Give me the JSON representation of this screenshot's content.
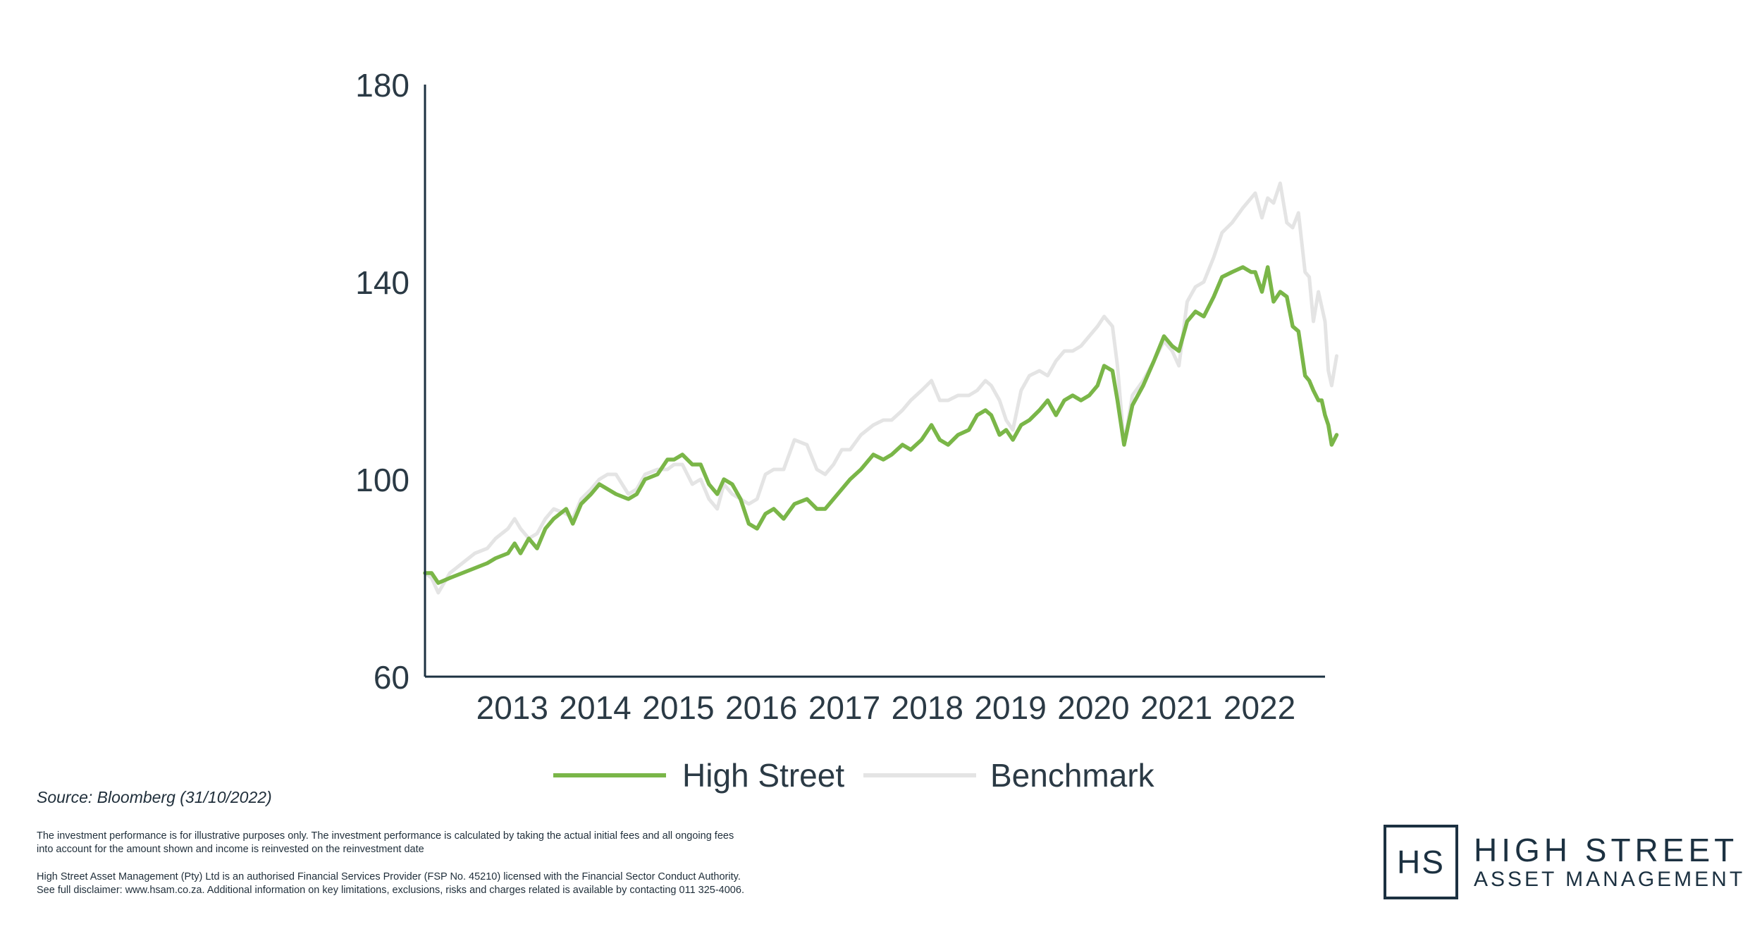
{
  "chart_data": {
    "type": "line",
    "title": "",
    "xlabel": "",
    "ylabel": "",
    "ylim": [
      60,
      180
    ],
    "yticks": [
      60,
      100,
      140,
      180
    ],
    "xlim": [
      2012.0,
      2022.84
    ],
    "xticks": [
      2013,
      2014,
      2015,
      2016,
      2017,
      2018,
      2019,
      2020,
      2021,
      2022
    ],
    "grid": false,
    "legend_position": "bottom",
    "series": [
      {
        "name": "High Street",
        "color": "#7ab648",
        "points": [
          [
            2012.0,
            81
          ],
          [
            2012.08,
            81
          ],
          [
            2012.16,
            79
          ],
          [
            2012.3,
            80
          ],
          [
            2012.45,
            81
          ],
          [
            2012.6,
            82
          ],
          [
            2012.75,
            83
          ],
          [
            2012.85,
            84
          ],
          [
            2013.0,
            85
          ],
          [
            2013.08,
            87
          ],
          [
            2013.15,
            85
          ],
          [
            2013.25,
            88
          ],
          [
            2013.35,
            86
          ],
          [
            2013.45,
            90
          ],
          [
            2013.55,
            92
          ],
          [
            2013.7,
            94
          ],
          [
            2013.78,
            91
          ],
          [
            2013.88,
            95
          ],
          [
            2014.0,
            97
          ],
          [
            2014.1,
            99
          ],
          [
            2014.2,
            98
          ],
          [
            2014.3,
            97
          ],
          [
            2014.45,
            96
          ],
          [
            2014.55,
            97
          ],
          [
            2014.65,
            100
          ],
          [
            2014.8,
            101
          ],
          [
            2014.92,
            104
          ],
          [
            2015.0,
            104
          ],
          [
            2015.1,
            105
          ],
          [
            2015.22,
            103
          ],
          [
            2015.32,
            103
          ],
          [
            2015.42,
            99
          ],
          [
            2015.52,
            97
          ],
          [
            2015.6,
            100
          ],
          [
            2015.7,
            99
          ],
          [
            2015.8,
            96
          ],
          [
            2015.9,
            91
          ],
          [
            2016.0,
            90
          ],
          [
            2016.1,
            93
          ],
          [
            2016.2,
            94
          ],
          [
            2016.32,
            92
          ],
          [
            2016.45,
            95
          ],
          [
            2016.6,
            96
          ],
          [
            2016.72,
            94
          ],
          [
            2016.82,
            94
          ],
          [
            2016.92,
            96
          ],
          [
            2017.02,
            98
          ],
          [
            2017.12,
            100
          ],
          [
            2017.25,
            102
          ],
          [
            2017.4,
            105
          ],
          [
            2017.52,
            104
          ],
          [
            2017.62,
            105
          ],
          [
            2017.75,
            107
          ],
          [
            2017.85,
            106
          ],
          [
            2017.98,
            108
          ],
          [
            2018.1,
            111
          ],
          [
            2018.2,
            108
          ],
          [
            2018.3,
            107
          ],
          [
            2018.42,
            109
          ],
          [
            2018.55,
            110
          ],
          [
            2018.65,
            113
          ],
          [
            2018.75,
            114
          ],
          [
            2018.82,
            113
          ],
          [
            2018.92,
            109
          ],
          [
            2019.0,
            110
          ],
          [
            2019.08,
            108
          ],
          [
            2019.18,
            111
          ],
          [
            2019.28,
            112
          ],
          [
            2019.4,
            114
          ],
          [
            2019.5,
            116
          ],
          [
            2019.6,
            113
          ],
          [
            2019.7,
            116
          ],
          [
            2019.8,
            117
          ],
          [
            2019.9,
            116
          ],
          [
            2020.0,
            117
          ],
          [
            2020.1,
            119
          ],
          [
            2020.18,
            123
          ],
          [
            2020.28,
            122
          ],
          [
            2020.34,
            116
          ],
          [
            2020.42,
            107
          ],
          [
            2020.52,
            115
          ],
          [
            2020.65,
            119
          ],
          [
            2020.78,
            124
          ],
          [
            2020.9,
            129
          ],
          [
            2021.0,
            127
          ],
          [
            2021.08,
            126
          ],
          [
            2021.18,
            132
          ],
          [
            2021.28,
            134
          ],
          [
            2021.38,
            133
          ],
          [
            2021.5,
            137
          ],
          [
            2021.6,
            141
          ],
          [
            2021.72,
            142
          ],
          [
            2021.85,
            143
          ],
          [
            2021.95,
            142
          ],
          [
            2022.0,
            142
          ],
          [
            2022.08,
            138
          ],
          [
            2022.15,
            143
          ],
          [
            2022.22,
            136
          ],
          [
            2022.3,
            138
          ],
          [
            2022.38,
            137
          ],
          [
            2022.45,
            131
          ],
          [
            2022.52,
            130
          ],
          [
            2022.6,
            121
          ],
          [
            2022.65,
            120
          ],
          [
            2022.7,
            118
          ],
          [
            2022.76,
            116
          ],
          [
            2022.8,
            116
          ],
          [
            2022.84,
            113
          ],
          [
            2022.88,
            111
          ],
          [
            2022.92,
            107
          ],
          [
            2022.98,
            109
          ]
        ]
      },
      {
        "name": "Benchmark",
        "color": "#e4e4e4",
        "points": [
          [
            2012.0,
            81
          ],
          [
            2012.08,
            80
          ],
          [
            2012.16,
            77
          ],
          [
            2012.3,
            81
          ],
          [
            2012.45,
            83
          ],
          [
            2012.6,
            85
          ],
          [
            2012.75,
            86
          ],
          [
            2012.85,
            88
          ],
          [
            2013.0,
            90
          ],
          [
            2013.08,
            92
          ],
          [
            2013.15,
            90
          ],
          [
            2013.25,
            88
          ],
          [
            2013.35,
            89
          ],
          [
            2013.45,
            92
          ],
          [
            2013.55,
            94
          ],
          [
            2013.7,
            93
          ],
          [
            2013.78,
            92
          ],
          [
            2013.88,
            96
          ],
          [
            2014.0,
            98
          ],
          [
            2014.1,
            100
          ],
          [
            2014.2,
            101
          ],
          [
            2014.3,
            101
          ],
          [
            2014.45,
            97
          ],
          [
            2014.55,
            98
          ],
          [
            2014.65,
            101
          ],
          [
            2014.8,
            102
          ],
          [
            2014.92,
            102
          ],
          [
            2015.0,
            103
          ],
          [
            2015.1,
            103
          ],
          [
            2015.22,
            99
          ],
          [
            2015.32,
            100
          ],
          [
            2015.42,
            96
          ],
          [
            2015.52,
            94
          ],
          [
            2015.6,
            99
          ],
          [
            2015.7,
            97
          ],
          [
            2015.8,
            96
          ],
          [
            2015.9,
            95
          ],
          [
            2016.0,
            96
          ],
          [
            2016.1,
            101
          ],
          [
            2016.2,
            102
          ],
          [
            2016.32,
            102
          ],
          [
            2016.45,
            108
          ],
          [
            2016.6,
            107
          ],
          [
            2016.72,
            102
          ],
          [
            2016.82,
            101
          ],
          [
            2016.92,
            103
          ],
          [
            2017.02,
            106
          ],
          [
            2017.12,
            106
          ],
          [
            2017.25,
            109
          ],
          [
            2017.4,
            111
          ],
          [
            2017.52,
            112
          ],
          [
            2017.62,
            112
          ],
          [
            2017.75,
            114
          ],
          [
            2017.85,
            116
          ],
          [
            2017.98,
            118
          ],
          [
            2018.1,
            120
          ],
          [
            2018.2,
            116
          ],
          [
            2018.3,
            116
          ],
          [
            2018.42,
            117
          ],
          [
            2018.55,
            117
          ],
          [
            2018.65,
            118
          ],
          [
            2018.75,
            120
          ],
          [
            2018.82,
            119
          ],
          [
            2018.92,
            116
          ],
          [
            2019.0,
            112
          ],
          [
            2019.08,
            110
          ],
          [
            2019.18,
            118
          ],
          [
            2019.28,
            121
          ],
          [
            2019.4,
            122
          ],
          [
            2019.5,
            121
          ],
          [
            2019.6,
            124
          ],
          [
            2019.7,
            126
          ],
          [
            2019.8,
            126
          ],
          [
            2019.9,
            127
          ],
          [
            2020.0,
            129
          ],
          [
            2020.1,
            131
          ],
          [
            2020.18,
            133
          ],
          [
            2020.28,
            131
          ],
          [
            2020.34,
            123
          ],
          [
            2020.42,
            107
          ],
          [
            2020.52,
            117
          ],
          [
            2020.65,
            120
          ],
          [
            2020.78,
            124
          ],
          [
            2020.9,
            128
          ],
          [
            2021.0,
            126
          ],
          [
            2021.08,
            123
          ],
          [
            2021.18,
            136
          ],
          [
            2021.28,
            139
          ],
          [
            2021.38,
            140
          ],
          [
            2021.5,
            145
          ],
          [
            2021.6,
            150
          ],
          [
            2021.72,
            152
          ],
          [
            2021.85,
            155
          ],
          [
            2021.95,
            157
          ],
          [
            2022.0,
            158
          ],
          [
            2022.08,
            153
          ],
          [
            2022.15,
            157
          ],
          [
            2022.22,
            156
          ],
          [
            2022.3,
            160
          ],
          [
            2022.38,
            152
          ],
          [
            2022.45,
            151
          ],
          [
            2022.52,
            154
          ],
          [
            2022.6,
            142
          ],
          [
            2022.65,
            141
          ],
          [
            2022.7,
            132
          ],
          [
            2022.76,
            138
          ],
          [
            2022.8,
            135
          ],
          [
            2022.84,
            132
          ],
          [
            2022.88,
            122
          ],
          [
            2022.92,
            119
          ],
          [
            2022.98,
            125
          ]
        ]
      }
    ],
    "legend": [
      "High Street",
      "Benchmark"
    ],
    "axis_color": "#1c3141",
    "text_color": "#2b3a45"
  },
  "source": "Source: Bloomberg (31/10/2022)",
  "disclaimer": {
    "line1": "The investment performance is for illustrative purposes only. The investment performance is calculated by taking the actual initial fees and all ongoing fees",
    "line2": "into account for the amount shown and income is reinvested on the reinvestment date",
    "line3": "High Street Asset Management (Pty) Ltd is an authorised Financial Services Provider (FSP No. 45210) licensed with the Financial Sector Conduct Authority.",
    "line4": "See full disclaimer: www.hsam.co.za. Additional information on key limitations, exclusions, risks and charges related is available by contacting 011 325-4006."
  },
  "logo": {
    "mark": "HS",
    "name": "HIGH STREET",
    "sub": "ASSET MANAGEMENT",
    "color": "#1c3141"
  }
}
